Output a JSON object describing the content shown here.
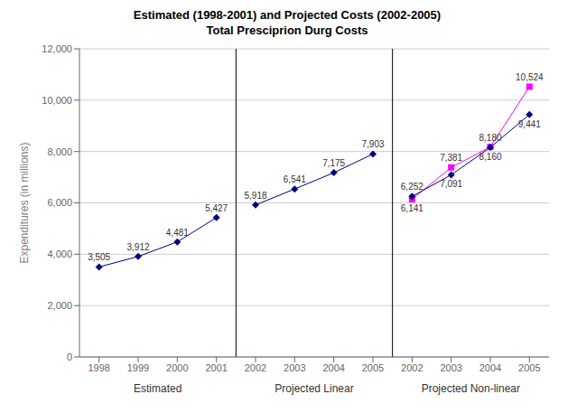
{
  "chart_data": {
    "type": "line",
    "title": "Estimated (1998-2001) and Projected Costs (2002-2005)",
    "subtitle": "Total Presciprion Durg Costs",
    "y_label": "Expenditures (in millions)",
    "categories": [
      "1998",
      "1999",
      "2000",
      "2001",
      "2002",
      "2003",
      "2004",
      "2005",
      "2002",
      "2003",
      "2004",
      "2005"
    ],
    "annotations": [
      "Estimated",
      "Projected Linear",
      "Projected Non-linear"
    ],
    "series": [
      {
        "color": "#000080",
        "marker": "diamond",
        "values": [
          3505,
          3912,
          4481,
          5427,
          null,
          null,
          null,
          null,
          null,
          null,
          null,
          null
        ],
        "value_labels": [
          "3,505",
          "3,912",
          "4,481",
          "5,427",
          null,
          null,
          null,
          null,
          null,
          null,
          null,
          null
        ]
      },
      {
        "color": "#000080",
        "marker": "diamond",
        "values": [
          null,
          null,
          null,
          null,
          5918,
          6541,
          7175,
          7903,
          null,
          null,
          null,
          null
        ],
        "value_labels": [
          null,
          null,
          null,
          null,
          "5,918",
          "6,541",
          "7,175",
          "7,903",
          null,
          null,
          null,
          null
        ]
      },
      {
        "color": "#ff00ff",
        "marker": "square",
        "values": [
          null,
          null,
          null,
          null,
          null,
          null,
          null,
          null,
          6141,
          7381,
          8180,
          10524
        ],
        "value_labels": [
          null,
          null,
          null,
          null,
          null,
          null,
          null,
          null,
          "6,141",
          "7,381",
          "8,180",
          "10,524"
        ]
      },
      {
        "color": "#000080",
        "marker": "diamond",
        "values": [
          null,
          null,
          null,
          null,
          null,
          null,
          null,
          null,
          6252,
          7091,
          8160,
          9441
        ],
        "value_labels": [
          null,
          null,
          null,
          null,
          null,
          null,
          null,
          null,
          "6,252",
          "7,091",
          "8,160",
          "9,441"
        ]
      }
    ],
    "ylim": [
      0,
      12000
    ],
    "yticks": [
      0,
      {
        "value": 2000,
        "label": "2,000"
      },
      {
        "value": 4000,
        "label": "4,000"
      },
      {
        "value": 6000,
        "label": "6,000"
      },
      {
        "value": 8000,
        "label": "8,000"
      },
      {
        "value": 10000,
        "label": "10,000"
      },
      {
        "value": 12000,
        "label": "12,000"
      }
    ],
    "grid": true,
    "data_labels": true
  }
}
